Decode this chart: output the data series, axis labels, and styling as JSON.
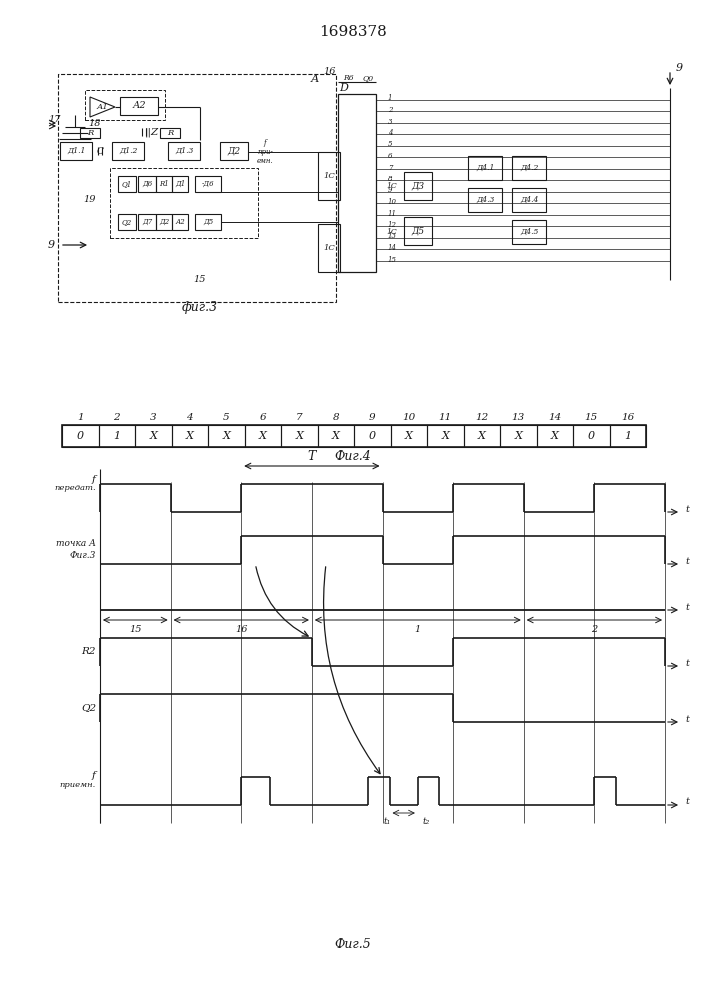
{
  "title": "1698378",
  "fig3_label": "фиг.3",
  "fig4_label": "Фиг.4",
  "fig5_label": "Фиг.5",
  "table_numbers": [
    "1",
    "2",
    "3",
    "4",
    "5",
    "6",
    "7",
    "8",
    "9",
    "10",
    "11",
    "12",
    "13",
    "14",
    "15",
    "16"
  ],
  "table_values": [
    "0",
    "1",
    "X",
    "X",
    "X",
    "X",
    "X",
    "X",
    "0",
    "X",
    "X",
    "X",
    "X",
    "X",
    "0",
    "1"
  ],
  "bg_color": "#ffffff",
  "line_color": "#1a1a1a"
}
